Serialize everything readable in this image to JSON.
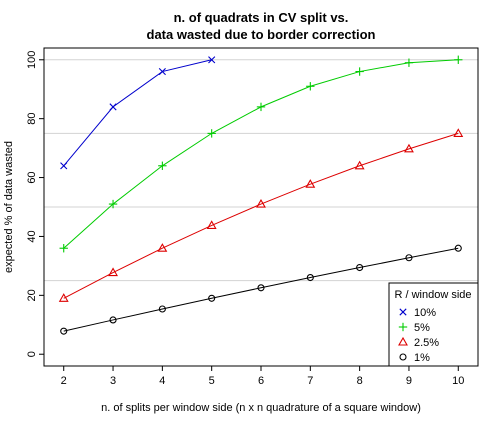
{
  "chart_data": {
    "type": "line",
    "title": [
      "n. of quadrats in CV split vs.",
      "data wasted due to border correction"
    ],
    "xlabel": "n. of splits per window side (n x n quadrature of a square window)",
    "ylabel": "expected % of data wasted",
    "xlim": [
      1.6,
      10.4
    ],
    "ylim": [
      -4,
      104
    ],
    "xticks": [
      2,
      3,
      4,
      5,
      6,
      7,
      8,
      9,
      10
    ],
    "yticks": [
      0,
      20,
      40,
      60,
      80,
      100
    ],
    "grid": {
      "horizontal": [
        25,
        50,
        75,
        100
      ]
    },
    "legend": {
      "title": "R / window side",
      "position": "bottom-right"
    },
    "series": [
      {
        "name": "10%",
        "color": "#0000cc",
        "marker": "x",
        "x": [
          2,
          3,
          4,
          5
        ],
        "y": [
          64,
          84,
          96,
          100
        ]
      },
      {
        "name": "5%",
        "color": "#00cc00",
        "marker": "plus",
        "x": [
          2,
          3,
          4,
          5,
          6,
          7,
          8,
          9,
          10
        ],
        "y": [
          36,
          51,
          64,
          75,
          84,
          91,
          96,
          99,
          100
        ]
      },
      {
        "name": "2.5%",
        "color": "#dd0000",
        "marker": "triangle",
        "x": [
          2,
          3,
          4,
          5,
          6,
          7,
          8,
          9,
          10
        ],
        "y": [
          19,
          27.75,
          36,
          43.75,
          51,
          57.75,
          64,
          69.75,
          75
        ]
      },
      {
        "name": "1%",
        "color": "#000000",
        "marker": "circle",
        "x": [
          2,
          3,
          4,
          5,
          6,
          7,
          8,
          9,
          10
        ],
        "y": [
          7.84,
          11.64,
          15.36,
          19,
          22.56,
          26.04,
          29.44,
          32.76,
          36
        ]
      }
    ]
  }
}
